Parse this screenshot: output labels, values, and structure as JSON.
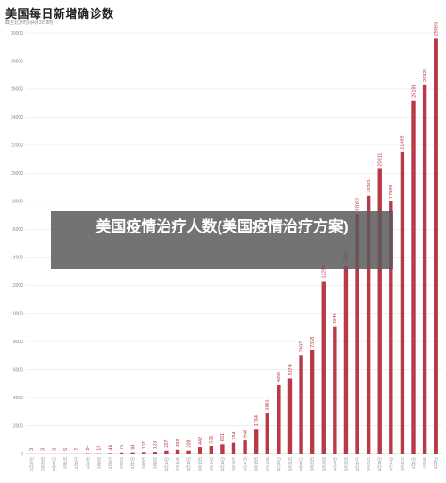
{
  "header": {
    "title": "美国每日新增确诊数",
    "subtitle": "截至北京时间4月3日8时"
  },
  "overlay": {
    "caption": "美国疫情治疗人数(美国疫情治疗方案)"
  },
  "colors": {
    "bar": "#b83a46",
    "grid": "#e6e6e6",
    "axis_text": "#888888",
    "value_text": "#b83a46"
  },
  "chart_data": {
    "type": "bar",
    "title": "美国每日新增确诊数",
    "subtitle": "截至北京时间4月3日8时",
    "xlabel": "",
    "ylabel": "",
    "ylim": [
      0,
      30000
    ],
    "yticks": [
      0,
      2000,
      4000,
      6000,
      8000,
      10000,
      12000,
      14000,
      16000,
      18000,
      20000,
      22000,
      24000,
      26000,
      28000,
      30000
    ],
    "grid": true,
    "categories": [
      "2月27日",
      "2月28日",
      "2月29日",
      "3月1日",
      "3月2日",
      "3月3日",
      "3月4日",
      "3月5日",
      "3月6日",
      "3月7日",
      "3月8日",
      "3月9日",
      "3月10日",
      "3月11日",
      "3月12日",
      "3月13日",
      "3月14日",
      "3月15日",
      "3月16日",
      "3月17日",
      "3月18日",
      "3月19日",
      "3月20日",
      "3月21日",
      "3月22日",
      "3月23日",
      "3月24日",
      "3月25日",
      "3月26日",
      "3月27日",
      "3月28日",
      "3月29日",
      "3月30日",
      "3月31日",
      "4月1日",
      "4月2日",
      "4月3日"
    ],
    "values": [
      3,
      3,
      3,
      5,
      7,
      24,
      19,
      40,
      75,
      84,
      107,
      123,
      207,
      269,
      209,
      442,
      532,
      681,
      784,
      946,
      1764,
      2882,
      4896,
      5374,
      7037,
      7378,
      12298,
      9046,
      13361,
      17092,
      18385,
      20311,
      17989,
      21495,
      25184,
      26325,
      29593
    ]
  }
}
